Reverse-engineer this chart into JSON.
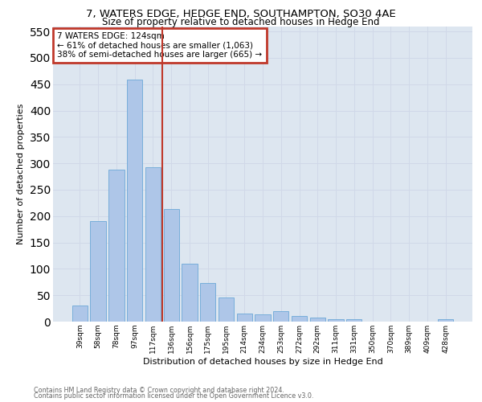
{
  "title": "7, WATERS EDGE, HEDGE END, SOUTHAMPTON, SO30 4AE",
  "subtitle": "Size of property relative to detached houses in Hedge End",
  "xlabel": "Distribution of detached houses by size in Hedge End",
  "ylabel": "Number of detached properties",
  "footnote1": "Contains HM Land Registry data © Crown copyright and database right 2024.",
  "footnote2": "Contains public sector information licensed under the Open Government Licence v3.0.",
  "categories": [
    "39sqm",
    "58sqm",
    "78sqm",
    "97sqm",
    "117sqm",
    "136sqm",
    "156sqm",
    "175sqm",
    "195sqm",
    "214sqm",
    "234sqm",
    "253sqm",
    "272sqm",
    "292sqm",
    "311sqm",
    "331sqm",
    "350sqm",
    "370sqm",
    "389sqm",
    "409sqm",
    "428sqm"
  ],
  "values": [
    30,
    190,
    288,
    458,
    292,
    213,
    110,
    73,
    46,
    15,
    13,
    20,
    10,
    8,
    5,
    5,
    0,
    0,
    0,
    0,
    5
  ],
  "bar_color": "#aec6e8",
  "bar_edge_color": "#5a9fd4",
  "vline_x": 4.5,
  "vline_color": "#c0392b",
  "annotation_text": "7 WATERS EDGE: 124sqm\n← 61% of detached houses are smaller (1,063)\n38% of semi-detached houses are larger (665) →",
  "annotation_box_color": "#c0392b",
  "annotation_fontsize": 7.5,
  "ylim": [
    0,
    560
  ],
  "yticks": [
    0,
    50,
    100,
    150,
    200,
    250,
    300,
    350,
    400,
    450,
    500,
    550
  ],
  "grid_color": "#d0d8e8",
  "bg_color": "#dde6f0",
  "title_fontsize": 9.5,
  "subtitle_fontsize": 8.5,
  "xlabel_fontsize": 8,
  "ylabel_fontsize": 8,
  "footnote_fontsize": 5.8
}
